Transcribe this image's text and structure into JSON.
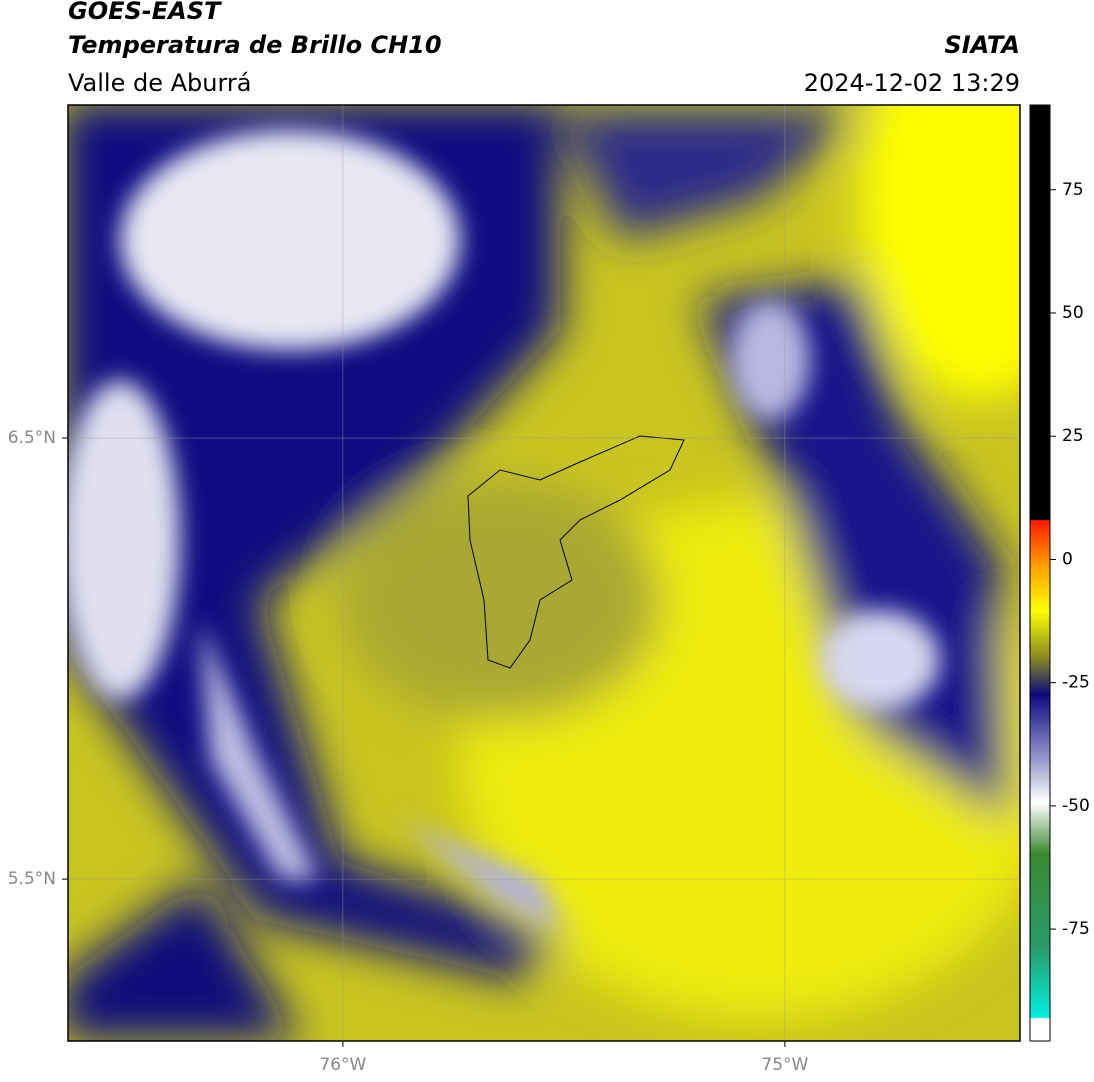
{
  "header": {
    "title": "GOES-EAST",
    "subtitle": "Temperatura de Brillo CH10",
    "region": "Valle de Aburrá",
    "source": "SIATA",
    "datetime": "2024-12-02 13:29"
  },
  "map": {
    "xlim": [
      -76.622,
      -74.468
    ],
    "ylim": [
      5.133,
      7.255
    ],
    "lat_ticks": [
      {
        "value": 6.5,
        "label": "6.5°N"
      },
      {
        "value": 5.5,
        "label": "5.5°N"
      }
    ],
    "lon_ticks": [
      {
        "value": -76,
        "label": "76°W"
      },
      {
        "value": -75,
        "label": "75°W"
      }
    ]
  },
  "colorbar": {
    "lim": [
      -97.7,
      92.2
    ],
    "ticks": [
      75,
      50,
      25,
      0,
      -25,
      -50,
      -75
    ]
  }
}
